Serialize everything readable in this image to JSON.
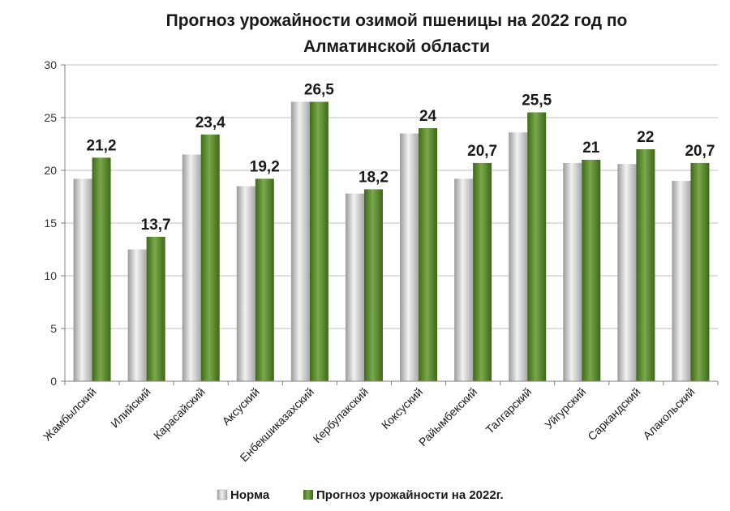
{
  "chart_data": {
    "type": "bar",
    "title_lines": [
      "Прогноз урожайности озимой пшеницы на 2022 год по",
      "Алматинской области"
    ],
    "xlabel": "",
    "ylabel": "",
    "ylim": [
      0,
      30
    ],
    "yticks": [
      "0",
      "5",
      "10",
      "15",
      "20",
      "25",
      "30"
    ],
    "grid": true,
    "legend_position": "bottom",
    "categories": [
      "Жамбылский",
      "Илийский",
      "Карасайский",
      "Аксуский",
      "Енбекшиказахский",
      "Кербулакский",
      "Коксуский",
      "Райымбекский",
      "Талгарский",
      "Уйгурский",
      "Саркандский",
      "Алакольский"
    ],
    "series": [
      {
        "name": "Норма",
        "color": "#c8c8c8",
        "values": [
          19.2,
          12.5,
          21.5,
          18.5,
          26.5,
          17.8,
          23.5,
          19.2,
          23.6,
          20.7,
          20.6,
          19.0
        ]
      },
      {
        "name": "Прогноз урожайности на 2022г.",
        "color": "#5f8a30",
        "values": [
          21.2,
          13.7,
          23.4,
          19.2,
          26.5,
          18.2,
          24,
          20.7,
          25.5,
          21,
          22,
          20.7
        ],
        "data_labels": [
          "21,2",
          "13,7",
          "23,4",
          "19,2",
          "26,5",
          "18,2",
          "24",
          "20,7",
          "25,5",
          "21",
          "22",
          "20,7"
        ]
      }
    ]
  }
}
